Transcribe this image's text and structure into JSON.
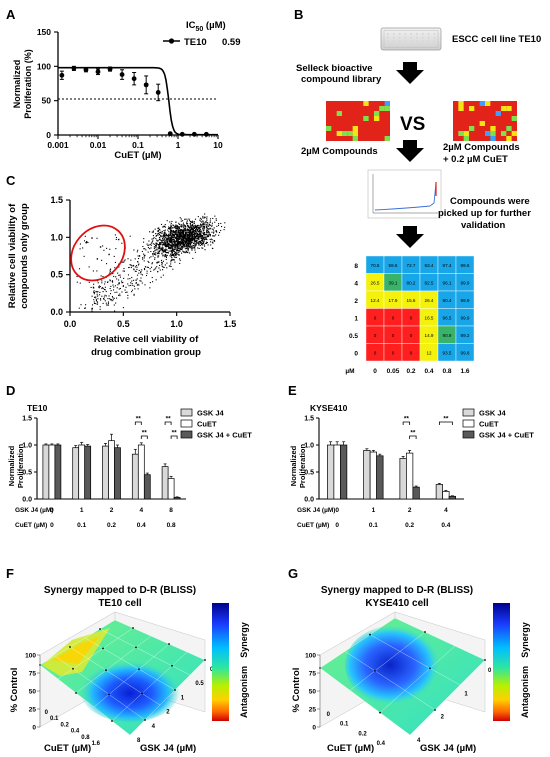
{
  "panels": {
    "A": {
      "letter": "A",
      "ylabel_1": "Normalized",
      "ylabel_2": "Proliferation (%)",
      "xlabel": "CuET (µM)",
      "ic50_label": "IC",
      "ic50_sub": "50",
      "ic50_unit": " (µM)",
      "legend_name": "TE10",
      "legend_value": "0.59",
      "yticks": [
        "0",
        "50",
        "100",
        "150"
      ],
      "xticks": [
        "0.001",
        "0.01",
        "0.1",
        "1",
        "10"
      ]
    },
    "B": {
      "letter": "B",
      "cell_line": "ESCC cell line TE10",
      "library_1": "Selleck bioactive",
      "library_2": "compound library",
      "vs": "VS",
      "left_label": "2µM Compounds",
      "right_label_1": "2µM Compounds",
      "right_label_2": "+ 0.2 µM CuET",
      "picked_1": "Compounds were",
      "picked_2": "picked up for further",
      "picked_3": "validation",
      "matrix_rows": [
        "8",
        "4",
        "2",
        "1",
        "0.5",
        "0"
      ],
      "matrix_cols": [
        "0",
        "0.05",
        "0.2",
        "0.4",
        "0.8",
        "1.6"
      ],
      "matrix_unit": "µM",
      "matrix_values": [
        [
          "70.5",
          "59.6",
          "72.7",
          "93.4",
          "97.4",
          "99.6"
        ],
        [
          "26.5",
          "39.1",
          "80.2",
          "82.5",
          "96.1",
          "99.9"
        ],
        [
          "12.4",
          "17.9",
          "15.6",
          "26.4",
          "90.4",
          "99.9"
        ],
        [
          "0",
          "0",
          "0",
          "16.5",
          "96.5",
          "99.9"
        ],
        [
          "0",
          "0",
          "0",
          "14.9",
          "90.9",
          "99.2"
        ],
        [
          "0",
          "0",
          "0",
          "12",
          "93.5",
          "99.8"
        ]
      ]
    },
    "C": {
      "letter": "C",
      "ylabel_1": "Relative cell viability of",
      "ylabel_2": "compounds only group",
      "xlabel_1": "Relative cell viability of",
      "xlabel_2": "drug combination group",
      "xticks": [
        "0.0",
        "0.5",
        "1.0",
        "1.5"
      ],
      "yticks": [
        "0.0",
        "0.5",
        "1.0",
        "1.5"
      ]
    },
    "D": {
      "letter": "D",
      "cell": "TE10",
      "ylabel_1": "Normalized",
      "ylabel_2": "Proliferation",
      "yticks": [
        "0.0",
        "0.5",
        "1.0",
        "1.5"
      ],
      "legend": [
        "GSK J4",
        "CuET",
        "GSK J4 + CuET"
      ],
      "row1_label": "GSK J4 (µM)",
      "row2_label": "CuET (µM)",
      "row1": [
        "0",
        "1",
        "2",
        "4",
        "8"
      ],
      "row2": [
        "0",
        "0.1",
        "0.2",
        "0.4",
        "0.8"
      ],
      "sig": "**"
    },
    "E": {
      "letter": "E",
      "cell": "KYSE410",
      "ylabel_1": "Normalized",
      "ylabel_2": "Proliferation",
      "yticks": [
        "0.0",
        "0.5",
        "1.0",
        "1.5"
      ],
      "legend": [
        "GSK J4",
        "CuET",
        "GSK J4 + CuET"
      ],
      "row1_label": "GSK J4 (µM)",
      "row2_label": "CuET (µM)",
      "row1": [
        "0",
        "1",
        "2",
        "4"
      ],
      "row2": [
        "0",
        "0.1",
        "0.2",
        "0.4"
      ],
      "sig": "**"
    },
    "F": {
      "letter": "F",
      "title_1": "Synergy mapped to D-R (BLISS)",
      "title_2": "TE10 cell",
      "zlabel": "% Control",
      "xlabel": "CuET (µM)",
      "ylabel": "GSK J4 (µM)",
      "zticks": [
        "0",
        "25",
        "50",
        "75",
        "100"
      ],
      "cuet_ticks": [
        "0",
        "0.1",
        "0.2",
        "0.4",
        "0.8",
        "1.6"
      ],
      "gsk_ticks": [
        "8",
        "4",
        "2",
        "1",
        "0.5",
        "0"
      ],
      "bar_top": "Synergy",
      "bar_bottom": "Antagonism"
    },
    "G": {
      "letter": "G",
      "title_1": "Synergy mapped to D-R (BLISS)",
      "title_2": "KYSE410 cell",
      "zlabel": "% Control",
      "xlabel": "CuET (µM)",
      "ylabel": "GSK J4 (µM)",
      "zticks": [
        "0",
        "25",
        "50",
        "75",
        "100"
      ],
      "cuet_ticks": [
        "0",
        "0.1",
        "0.2",
        "0.4"
      ],
      "gsk_ticks": [
        "4",
        "2",
        "1",
        "0"
      ],
      "bar_top": "Synergy",
      "bar_bottom": "Antagonism"
    }
  },
  "chart_data": [
    {
      "type": "line",
      "panel": "A",
      "xlabel": "CuET (µM)",
      "ylabel": "Normalized Proliferation (%)",
      "xscale": "log",
      "xlim": [
        0.001,
        10
      ],
      "ylim": [
        0,
        150
      ],
      "reference_line": 50,
      "series": [
        {
          "name": "TE10",
          "ic50": 0.59,
          "x": [
            0.00125,
            0.0025,
            0.005,
            0.01,
            0.02,
            0.04,
            0.08,
            0.16,
            0.32,
            0.64,
            1.28,
            2.56,
            5.12
          ],
          "y": [
            87,
            97,
            95,
            92,
            96,
            88,
            82,
            73,
            62,
            2,
            1,
            1,
            1
          ]
        }
      ]
    },
    {
      "type": "scatter",
      "panel": "C",
      "xlabel": "Relative cell viability of drug combination group",
      "ylabel": "Relative cell viability of compounds only group",
      "xlim": [
        0,
        1.5
      ],
      "ylim": [
        0,
        1.5
      ]
    },
    {
      "type": "bar",
      "panel": "D",
      "title": "TE10",
      "categories": [
        "0/0",
        "1/0.1",
        "2/0.2",
        "4/0.4",
        "8/0.8"
      ],
      "ylim": [
        0,
        1.5
      ],
      "series": [
        {
          "name": "GSK J4",
          "values": [
            1.0,
            0.95,
            0.98,
            0.83,
            0.6
          ]
        },
        {
          "name": "CuET",
          "values": [
            1.0,
            1.0,
            1.08,
            1.0,
            0.38
          ]
        },
        {
          "name": "GSK J4 + CuET",
          "values": [
            1.0,
            0.98,
            0.95,
            0.45,
            0.03
          ]
        }
      ]
    },
    {
      "type": "bar",
      "panel": "E",
      "title": "KYSE410",
      "categories": [
        "0/0",
        "1/0.1",
        "2/0.2",
        "4/0.4"
      ],
      "ylim": [
        0,
        1.5
      ],
      "series": [
        {
          "name": "GSK J4",
          "values": [
            1.0,
            0.9,
            0.75,
            0.27
          ]
        },
        {
          "name": "CuET",
          "values": [
            1.0,
            0.87,
            0.85,
            0.14
          ]
        },
        {
          "name": "GSK J4 + CuET",
          "values": [
            1.0,
            0.8,
            0.22,
            0.05
          ]
        }
      ]
    }
  ]
}
